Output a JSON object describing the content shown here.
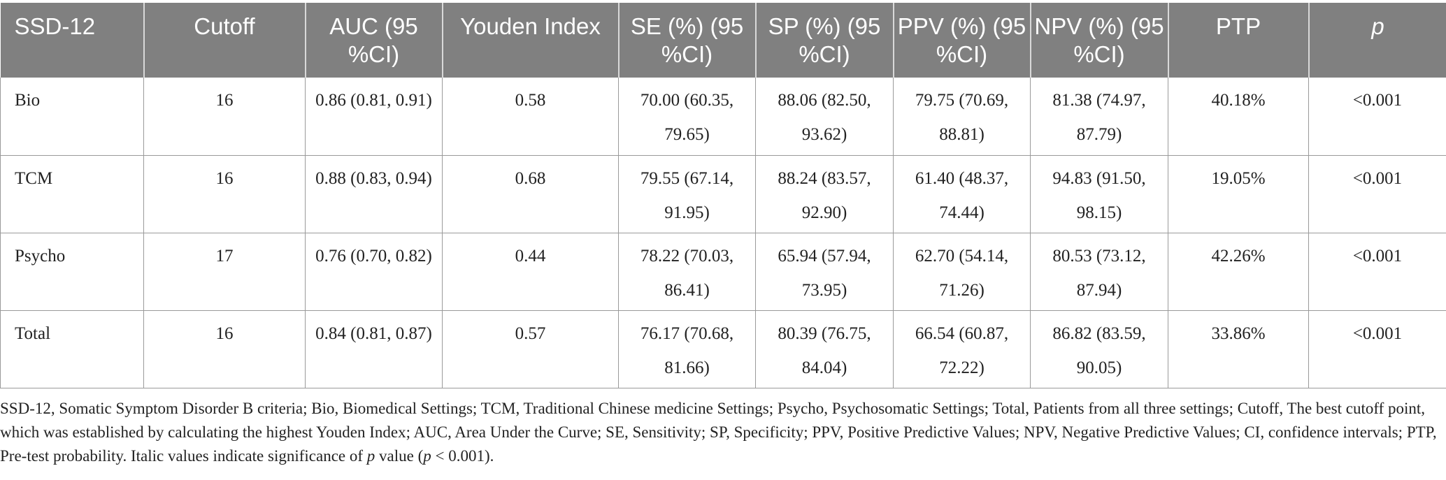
{
  "table": {
    "headers": [
      "SSD-12",
      "Cutoff",
      "AUC (95 %CI)",
      "Youden Index",
      "SE (%) (95 %CI)",
      "SP (%) (95 %CI)",
      "PPV (%) (95 %CI)",
      "NPV (%) (95 %CI)",
      "PTP",
      "p"
    ],
    "rows": [
      [
        "Bio",
        "16",
        "0.86 (0.81, 0.91)",
        "0.58",
        "70.00 (60.35, 79.65)",
        "88.06 (82.50, 93.62)",
        "79.75 (70.69, 88.81)",
        "81.38 (74.97, 87.79)",
        "40.18%",
        "<0.001"
      ],
      [
        "TCM",
        "16",
        "0.88 (0.83, 0.94)",
        "0.68",
        "79.55 (67.14, 91.95)",
        "88.24 (83.57, 92.90)",
        "61.40 (48.37, 74.44)",
        "94.83 (91.50, 98.15)",
        "19.05%",
        "<0.001"
      ],
      [
        "Psycho",
        "17",
        "0.76 (0.70, 0.82)",
        "0.44",
        "78.22 (70.03, 86.41)",
        "65.94 (57.94, 73.95)",
        "62.70 (54.14, 71.26)",
        "80.53 (73.12, 87.94)",
        "42.26%",
        "<0.001"
      ],
      [
        "Total",
        "16",
        "0.84 (0.81, 0.87)",
        "0.57",
        "76.17 (70.68, 81.66)",
        "80.39 (76.75, 84.04)",
        "66.54 (60.87, 72.22)",
        "86.82 (83.59, 90.05)",
        "33.86%",
        "<0.001"
      ]
    ]
  },
  "footnote": {
    "text_a": "SSD-12, Somatic Symptom Disorder B criteria; Bio, Biomedical Settings; TCM, Traditional Chinese medicine Settings; Psycho, Psychosomatic Settings; Total, Patients from all three settings; Cutoff, The best cutoff point, which was established by calculating the highest Youden Index; AUC, Area Under the Curve; SE, Sensitivity; SP, Specificity; PPV, Positive Predictive Values; NPV, Negative Predictive Values; CI, confidence intervals; PTP, Pre-test probability. Italic values indicate significance of ",
    "p1": "p",
    "text_b": " value (",
    "p2": "p",
    "text_c": " < 0.001)."
  }
}
